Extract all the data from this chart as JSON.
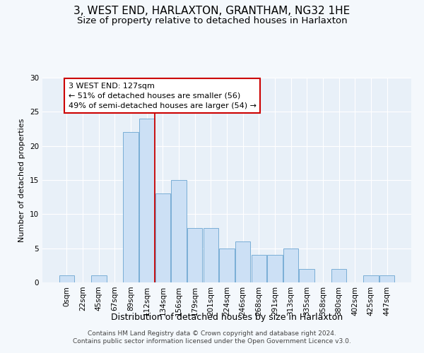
{
  "title": "3, WEST END, HARLAXTON, GRANTHAM, NG32 1HE",
  "subtitle": "Size of property relative to detached houses in Harlaxton",
  "xlabel": "Distribution of detached houses by size in Harlaxton",
  "ylabel": "Number of detached properties",
  "bar_labels": [
    "0sqm",
    "22sqm",
    "45sqm",
    "67sqm",
    "89sqm",
    "112sqm",
    "134sqm",
    "156sqm",
    "179sqm",
    "201sqm",
    "224sqm",
    "246sqm",
    "268sqm",
    "291sqm",
    "313sqm",
    "335sqm",
    "358sqm",
    "380sqm",
    "402sqm",
    "425sqm",
    "447sqm"
  ],
  "bar_heights": [
    1,
    0,
    1,
    0,
    22,
    24,
    13,
    15,
    8,
    8,
    5,
    6,
    4,
    4,
    5,
    2,
    0,
    2,
    0,
    1,
    1
  ],
  "bar_color": "#cce0f5",
  "bar_edge_color": "#7aaed6",
  "vline_color": "#cc0000",
  "vline_x": 5.5,
  "annotation_text": "3 WEST END: 127sqm\n← 51% of detached houses are smaller (56)\n49% of semi-detached houses are larger (54) →",
  "annotation_box_color": "#ffffff",
  "annotation_box_edge": "#cc0000",
  "ylim": [
    0,
    30
  ],
  "yticks": [
    0,
    5,
    10,
    15,
    20,
    25,
    30
  ],
  "footer_line1": "Contains HM Land Registry data © Crown copyright and database right 2024.",
  "footer_line2": "Contains public sector information licensed under the Open Government Licence v3.0.",
  "title_fontsize": 11,
  "subtitle_fontsize": 9.5,
  "xlabel_fontsize": 9,
  "ylabel_fontsize": 8,
  "annot_fontsize": 8,
  "tick_fontsize": 7.5,
  "footer_fontsize": 6.5,
  "background_color": "#f4f8fc",
  "plot_bg_color": "#e8f0f8"
}
